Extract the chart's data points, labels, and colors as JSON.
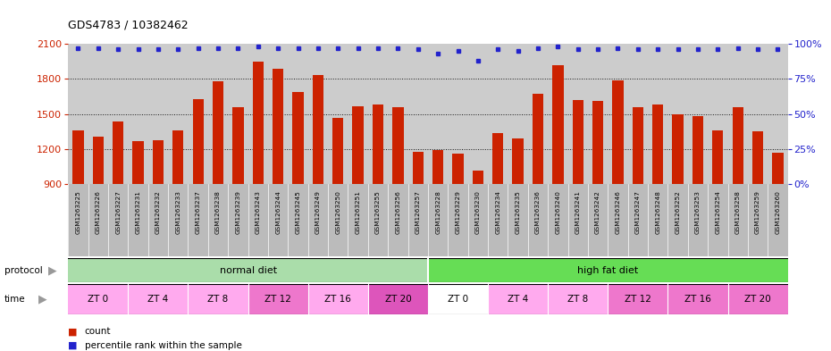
{
  "title": "GDS4783 / 10382462",
  "samples": [
    "GSM1263225",
    "GSM1263226",
    "GSM1263227",
    "GSM1263231",
    "GSM1263232",
    "GSM1263233",
    "GSM1263237",
    "GSM1263238",
    "GSM1263239",
    "GSM1263243",
    "GSM1263244",
    "GSM1263245",
    "GSM1263249",
    "GSM1263250",
    "GSM1263251",
    "GSM1263255",
    "GSM1263256",
    "GSM1263257",
    "GSM1263228",
    "GSM1263229",
    "GSM1263230",
    "GSM1263234",
    "GSM1263235",
    "GSM1263236",
    "GSM1263240",
    "GSM1263241",
    "GSM1263242",
    "GSM1263246",
    "GSM1263247",
    "GSM1263248",
    "GSM1263252",
    "GSM1263253",
    "GSM1263254",
    "GSM1263258",
    "GSM1263259",
    "GSM1263260"
  ],
  "bar_values": [
    1360,
    1310,
    1440,
    1270,
    1280,
    1360,
    1630,
    1780,
    1560,
    1950,
    1890,
    1690,
    1830,
    1470,
    1570,
    1580,
    1560,
    1180,
    1190,
    1160,
    1020,
    1340,
    1290,
    1670,
    1920,
    1620,
    1610,
    1790,
    1560,
    1580,
    1500,
    1480,
    1360,
    1560,
    1350,
    1170
  ],
  "percentile_values": [
    97,
    97,
    96,
    96,
    96,
    96,
    97,
    97,
    97,
    98,
    97,
    97,
    97,
    97,
    97,
    97,
    97,
    96,
    93,
    95,
    88,
    96,
    95,
    97,
    98,
    96,
    96,
    97,
    96,
    96,
    96,
    96,
    96,
    97,
    96,
    96
  ],
  "ylim_min": 900,
  "ylim_max": 2100,
  "yticks": [
    900,
    1200,
    1500,
    1800,
    2100
  ],
  "grid_lines": [
    1200,
    1500,
    1800
  ],
  "bar_color": "#cc2200",
  "dot_color": "#2222cc",
  "plot_bg_color": "#cccccc",
  "xtick_bg_color": "#bbbbbb",
  "normal_diet_color": "#aaddaa",
  "high_fat_color": "#66dd55",
  "time_groups": [
    {
      "label": "ZT 0",
      "start": 0,
      "end": 3,
      "color": "#ffaaee"
    },
    {
      "label": "ZT 4",
      "start": 3,
      "end": 6,
      "color": "#ffaaee"
    },
    {
      "label": "ZT 8",
      "start": 6,
      "end": 9,
      "color": "#ffaaee"
    },
    {
      "label": "ZT 12",
      "start": 9,
      "end": 12,
      "color": "#ee77cc"
    },
    {
      "label": "ZT 16",
      "start": 12,
      "end": 15,
      "color": "#ffaaee"
    },
    {
      "label": "ZT 20",
      "start": 15,
      "end": 18,
      "color": "#dd55bb"
    },
    {
      "label": "ZT 0",
      "start": 18,
      "end": 21,
      "color": "#ffffff"
    },
    {
      "label": "ZT 4",
      "start": 21,
      "end": 24,
      "color": "#ffaaee"
    },
    {
      "label": "ZT 8",
      "start": 24,
      "end": 27,
      "color": "#ffaaee"
    },
    {
      "label": "ZT 12",
      "start": 27,
      "end": 30,
      "color": "#ee77cc"
    },
    {
      "label": "ZT 16",
      "start": 30,
      "end": 33,
      "color": "#ee77cc"
    },
    {
      "label": "ZT 20",
      "start": 33,
      "end": 36,
      "color": "#ee77cc"
    }
  ],
  "right_yticks": [
    0,
    25,
    50,
    75,
    100
  ],
  "right_yticklabels": [
    "0%",
    "25%",
    "50%",
    "75%",
    "100%"
  ]
}
